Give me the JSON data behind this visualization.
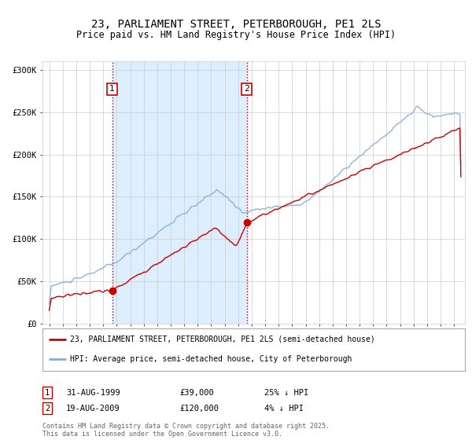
{
  "title": "23, PARLIAMENT STREET, PETERBOROUGH, PE1 2LS",
  "subtitle": "Price paid vs. HM Land Registry's House Price Index (HPI)",
  "title_fontsize": 10,
  "subtitle_fontsize": 8.5,
  "bg_color": "#ffffff",
  "plot_bg_color": "#ffffff",
  "shaded_region_color": "#ddeeff",
  "grid_color": "#cccccc",
  "red_line_color": "#cc0000",
  "blue_line_color": "#88aadd",
  "dashed_line_color": "#cc0000",
  "sale1_date_x": 1999.66,
  "sale1_price": 39000,
  "sale2_date_x": 2009.63,
  "sale2_price": 120000,
  "ylim": [
    0,
    310000
  ],
  "xlim_start": 1994.5,
  "xlim_end": 2025.8,
  "ytick_labels": [
    "£0",
    "£50K",
    "£100K",
    "£150K",
    "£200K",
    "£250K",
    "£300K"
  ],
  "ytick_values": [
    0,
    50000,
    100000,
    150000,
    200000,
    250000,
    300000
  ],
  "legend_entry1": "23, PARLIAMENT STREET, PETERBOROUGH, PE1 2LS (semi-detached house)",
  "legend_entry2": "HPI: Average price, semi-detached house, City of Peterborough",
  "annotation1_box": "1",
  "annotation1_date": "31-AUG-1999",
  "annotation1_price": "£39,000",
  "annotation1_hpi": "25% ↓ HPI",
  "annotation2_box": "2",
  "annotation2_date": "19-AUG-2009",
  "annotation2_price": "£120,000",
  "annotation2_hpi": "4% ↓ HPI",
  "footer": "Contains HM Land Registry data © Crown copyright and database right 2025.\nThis data is licensed under the Open Government Licence v3.0."
}
